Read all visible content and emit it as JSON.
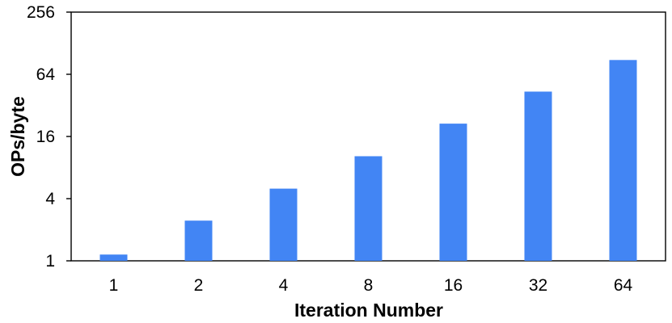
{
  "chart_data": {
    "type": "bar",
    "title": "",
    "xlabel": "Iteration Number",
    "ylabel": "OPs/byte",
    "y_scale": "log2",
    "ylim": [
      1,
      256
    ],
    "yticks": [
      1,
      4,
      16,
      64,
      256
    ],
    "ytick_labels": [
      "1",
      "4",
      "16",
      "64",
      "256"
    ],
    "categories": [
      "1",
      "2",
      "4",
      "8",
      "16",
      "32",
      "64"
    ],
    "values": [
      1.15,
      2.45,
      5.0,
      10.3,
      21.3,
      43.5,
      88.0
    ],
    "grid": false,
    "legend": "none",
    "bar_color": "#4285F4",
    "axis_color": "#000000"
  }
}
